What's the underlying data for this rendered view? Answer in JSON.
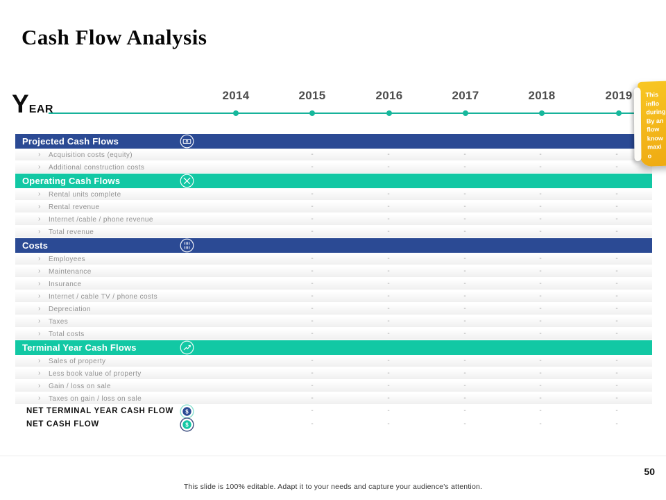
{
  "slide": {
    "title": "Cash Flow Analysis",
    "page_number": "50",
    "footer": "This slide is 100% editable. Adapt it to your needs and capture your audience's attention."
  },
  "timeline": {
    "label_initial": "Y",
    "label_rest": "EAR",
    "years": [
      "2014",
      "2015",
      "2016",
      "2017",
      "2018",
      "2019"
    ]
  },
  "table": {
    "bullet": "›",
    "placeholder": "-",
    "value_columns": 5,
    "sections": [
      {
        "title": "Projected Cash Flows",
        "color": "blue",
        "icon": "banknote-icon",
        "rows": [
          "Acquisition costs (equity)",
          "Additional construction costs"
        ]
      },
      {
        "title": "Operating Cash Flows",
        "color": "teal",
        "icon": "crossed-tools-icon",
        "rows": [
          "Rental units complete",
          "Rental revenue",
          "Internet /cable / phone revenue",
          "Total revenue"
        ]
      },
      {
        "title": "Costs",
        "color": "blue",
        "icon": "tally-bars-icon",
        "rows": [
          "Employees",
          "Maintenance",
          "Insurance",
          "Internet / cable TV / phone costs",
          "Depreciation",
          "Taxes",
          "Total costs"
        ]
      },
      {
        "title": "Terminal Year Cash Flows",
        "color": "teal",
        "icon": "growth-arrow-icon",
        "rows": [
          "Sales of property",
          "Less book value of property",
          "Gain / loss on sale",
          "Taxes on gain / loss on sale"
        ]
      }
    ],
    "summary_rows": [
      {
        "label": "NET TERMINAL YEAR CASH FLOW",
        "icon": "dollar-globe-icon"
      },
      {
        "label": "NET CASH FLOW",
        "icon": "dollar-coin-icon"
      }
    ]
  },
  "sticky_note": {
    "lines": [
      "This",
      "inflo",
      "during",
      "By an",
      "flow",
      "know",
      "maxi",
      "o"
    ]
  },
  "colors": {
    "header_blue": "#2b4a94",
    "header_teal": "#12c8a4",
    "timeline_teal": "#18b29b",
    "note_yellow": "#f2b318"
  }
}
